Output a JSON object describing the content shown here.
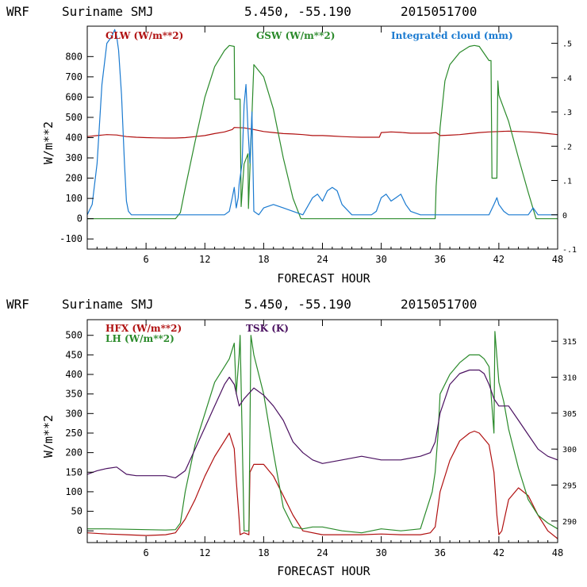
{
  "charts": [
    {
      "header": {
        "model": "WRF",
        "location": "Suriname SMJ",
        "coords": "5.450, -55.190",
        "date": "2015051700"
      },
      "chart_data": {
        "type": "line",
        "xlabel": "FORECAST HOUR",
        "ylabel": "W/m**2",
        "xlim": [
          0,
          48
        ],
        "ylim": [
          -150,
          950
        ],
        "xticks": [
          6,
          12,
          18,
          24,
          30,
          36,
          42,
          48
        ],
        "yticks": [
          -100,
          0,
          100,
          200,
          300,
          400,
          500,
          600,
          700,
          800
        ],
        "right_axis": {
          "label": "Integrated cloud (mm)",
          "lim": [
            -0.1,
            0.55
          ],
          "ticks": [
            -0.1,
            0,
            0.1,
            0.2,
            0.3,
            0.4,
            0.5
          ],
          "tick_labels": [
            "-.1",
            "0",
            ".1",
            ".2",
            ".3",
            ".4",
            ".5"
          ]
        },
        "series": [
          {
            "name": "GLW (W/m**2)",
            "color": "#b01010",
            "axis": "left",
            "x": [
              0,
              1,
              2,
              3,
              4,
              5,
              6,
              7,
              8,
              9,
              10,
              11,
              12,
              13,
              14,
              14.8,
              15,
              16,
              17,
              18,
              19,
              20,
              21,
              22,
              23,
              24,
              25,
              26,
              27,
              28,
              29,
              29.8,
              30,
              31,
              32,
              33,
              34,
              35,
              35.6,
              36,
              37,
              38,
              39,
              40,
              41,
              42,
              43,
              44,
              45,
              46,
              47,
              48
            ],
            "y": [
              405,
              410,
              415,
              413,
              405,
              402,
              400,
              399,
              398,
              398,
              400,
              405,
              410,
              420,
              428,
              440,
              450,
              448,
              440,
              430,
              425,
              420,
              418,
              415,
              410,
              410,
              408,
              405,
              403,
              402,
              402,
              402,
              425,
              428,
              426,
              422,
              422,
              422,
              425,
              410,
              412,
              415,
              420,
              425,
              428,
              430,
              432,
              430,
              428,
              425,
              420,
              415
            ]
          },
          {
            "name": "GSW (W/m**2)",
            "color": "#2a8a2a",
            "axis": "left",
            "x": [
              0,
              9,
              9.5,
              10,
              11,
              12,
              13,
              14,
              14.5,
              15,
              15.05,
              15.6,
              15.7,
              16,
              16.4,
              16.45,
              17,
              18,
              19,
              20,
              21,
              21.8,
              35.5,
              35.6,
              36,
              36.5,
              37,
              38,
              39,
              39.5,
              40,
              41,
              41.2,
              41.3,
              41.8,
              41.9,
              42,
              43,
              44,
              45,
              45.8,
              48
            ],
            "y": [
              0,
              0,
              30,
              150,
              380,
              600,
              750,
              830,
              855,
              850,
              590,
              590,
              60,
              270,
              320,
              50,
              760,
              700,
              540,
              300,
              100,
              0,
              0,
              160,
              450,
              680,
              760,
              820,
              850,
              855,
              850,
              780,
              780,
              200,
              200,
              680,
              610,
              480,
              300,
              130,
              0,
              0
            ]
          },
          {
            "name": "Integrated cloud (mm)",
            "color": "#1a7ad0",
            "axis": "right",
            "x": [
              0,
              0.5,
              1,
              1.5,
              2,
              2.5,
              2.8,
              3,
              3.2,
              3.5,
              3.8,
              4,
              4.2,
              4.5,
              5,
              6,
              7,
              8,
              14,
              14.5,
              14.8,
              15,
              15.2,
              15.4,
              15.5,
              15.8,
              16,
              16.2,
              16.4,
              16.6,
              16.8,
              17,
              17.5,
              18,
              19,
              20,
              21,
              22,
              23,
              23.5,
              24,
              24.5,
              25,
              25.5,
              26,
              27,
              28,
              29,
              29.5,
              30,
              30.5,
              31,
              31.5,
              32,
              32.5,
              33,
              34,
              35,
              36,
              37,
              38,
              39,
              40,
              41,
              41.5,
              41.8,
              42,
              42.5,
              43,
              44,
              45,
              45.5,
              46,
              47,
              48
            ],
            "y": [
              0,
              0.03,
              0.15,
              0.38,
              0.5,
              0.52,
              0.54,
              0.52,
              0.48,
              0.35,
              0.15,
              0.04,
              0.01,
              0,
              0,
              0,
              0,
              0,
              0,
              0.01,
              0.05,
              0.08,
              0.02,
              0.05,
              0.09,
              0.15,
              0.32,
              0.38,
              0.25,
              0.15,
              0.3,
              0.01,
              0,
              0.02,
              0.03,
              0.02,
              0.01,
              0,
              0.05,
              0.06,
              0.04,
              0.07,
              0.08,
              0.07,
              0.03,
              0,
              0,
              0,
              0.01,
              0.05,
              0.06,
              0.04,
              0.05,
              0.06,
              0.03,
              0.01,
              0,
              0,
              0,
              0,
              0,
              0,
              0,
              0,
              0.03,
              0.05,
              0.03,
              0.01,
              0,
              0,
              0,
              0.02,
              0,
              0,
              0
            ]
          }
        ]
      }
    },
    {
      "header": {
        "model": "WRF",
        "location": "Suriname SMJ",
        "coords": "5.450, -55.190",
        "date": "2015051700"
      },
      "chart_data": {
        "type": "line",
        "xlabel": "FORECAST HOUR",
        "ylabel": "W/m**2",
        "xlim": [
          0,
          48
        ],
        "ylim": [
          -30,
          540
        ],
        "xticks": [
          6,
          12,
          18,
          24,
          30,
          36,
          42,
          48
        ],
        "yticks": [
          0,
          50,
          100,
          150,
          200,
          250,
          300,
          350,
          400,
          450,
          500
        ],
        "right_axis": {
          "label": "TSK (K)",
          "lim": [
            287,
            318
          ],
          "ticks": [
            290,
            295,
            300,
            305,
            310,
            315
          ],
          "tick_labels": [
            "290",
            "295",
            "300",
            "305",
            "310",
            "315"
          ]
        },
        "series": [
          {
            "name": "HFX (W/m**2)",
            "color": "#b01010",
            "axis": "left",
            "x": [
              0,
              2,
              4,
              6,
              8,
              9,
              10,
              11,
              12,
              13,
              14,
              14.5,
              15,
              15.2,
              15.5,
              15.6,
              16,
              16.5,
              16.6,
              17,
              18,
              19,
              20,
              21,
              22,
              24,
              26,
              28,
              30,
              32,
              34,
              35,
              35.5,
              36,
              37,
              38,
              39,
              39.5,
              40,
              41,
              41.5,
              41.8,
              42,
              42.3,
              43,
              44,
              45,
              46,
              47,
              48
            ],
            "y": [
              -5,
              -8,
              -10,
              -12,
              -10,
              -5,
              30,
              80,
              140,
              190,
              230,
              250,
              210,
              130,
              30,
              -10,
              -5,
              -10,
              150,
              170,
              170,
              140,
              90,
              40,
              0,
              -10,
              -10,
              -10,
              -8,
              -10,
              -10,
              -5,
              10,
              100,
              180,
              230,
              250,
              255,
              250,
              220,
              150,
              40,
              -10,
              0,
              80,
              110,
              90,
              40,
              0,
              -20
            ]
          },
          {
            "name": "LH (W/m**2)",
            "color": "#2a8a2a",
            "axis": "left",
            "x": [
              0,
              2,
              4,
              6,
              8,
              9,
              9.5,
              10,
              11,
              12,
              13,
              14,
              14.5,
              15,
              15.2,
              15.5,
              15.6,
              16,
              16.5,
              16.7,
              17,
              18,
              19,
              20,
              21,
              22,
              23,
              24,
              26,
              28,
              30,
              32,
              34,
              35.2,
              35.5,
              35.8,
              36,
              37,
              38,
              39,
              40,
              40.5,
              41,
              41.5,
              41.6,
              42,
              42.5,
              43,
              44,
              45,
              46,
              47,
              48
            ],
            "y": [
              5,
              5,
              4,
              3,
              2,
              3,
              20,
              100,
              220,
              300,
              380,
              420,
              440,
              480,
              350,
              450,
              500,
              0,
              0,
              500,
              450,
              350,
              200,
              60,
              10,
              5,
              10,
              10,
              0,
              -5,
              5,
              0,
              5,
              100,
              150,
              250,
              350,
              400,
              430,
              450,
              450,
              440,
              420,
              250,
              510,
              380,
              330,
              260,
              160,
              80,
              40,
              20,
              5
            ]
          },
          {
            "name": "TSK (K)",
            "color": "#4a1060",
            "axis": "right",
            "x": [
              0,
              1,
              2,
              3,
              4,
              5,
              6,
              7,
              8,
              9,
              10,
              11,
              12,
              13,
              14,
              14.5,
              15,
              15.5,
              16,
              17,
              18,
              19,
              20,
              21,
              22,
              23,
              24,
              26,
              28,
              30,
              32,
              34,
              35,
              35.5,
              36,
              37,
              38,
              39,
              39.5,
              40,
              40.5,
              41,
              41.5,
              42,
              42.5,
              43,
              44,
              45,
              46,
              47,
              48
            ],
            "y": [
              296.5,
              297,
              297.3,
              297.5,
              296.5,
              296.3,
              296.3,
              296.3,
              296.3,
              296,
              297,
              300,
              303,
              306,
              309,
              310,
              309,
              306,
              307,
              308.5,
              307.5,
              306,
              304,
              301,
              299.5,
              298.5,
              298,
              298.5,
              299,
              298.5,
              298.5,
              299,
              299.5,
              301,
              305,
              309,
              310.5,
              311,
              311,
              311,
              310.5,
              309,
              307,
              306,
              306,
              306,
              304,
              302,
              300,
              299,
              298.5
            ]
          }
        ]
      }
    }
  ]
}
